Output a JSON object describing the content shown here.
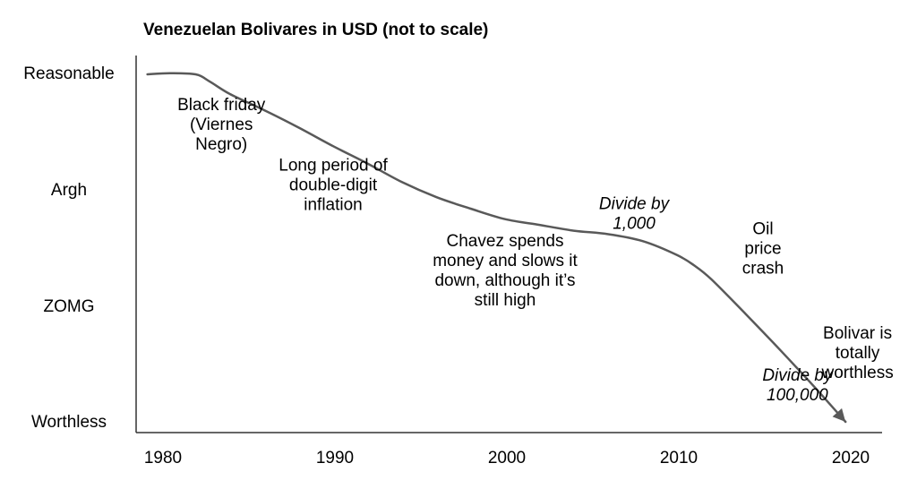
{
  "chart_data": {
    "type": "line",
    "title": "Venezuelan Bolivares in USD (not to scale)",
    "xlabel": "",
    "ylabel": "",
    "x_ticks": [
      1980,
      1990,
      2000,
      2010,
      2020
    ],
    "xlim": [
      1978,
      2022
    ],
    "y_categories": [
      "Reasonable",
      "Argh",
      "ZOMG",
      "Worthless"
    ],
    "ylim": [
      0,
      3
    ],
    "grid": false,
    "series": [
      {
        "x": [
          1979.2,
          1980.5,
          1982,
          1982.8,
          1984,
          1986,
          1988,
          1990,
          1992,
          1994,
          1996,
          1998,
          2000,
          2002,
          2004,
          2006,
          2008,
          2010,
          2011,
          2012,
          2014,
          2016,
          2018,
          2019.8
        ],
        "y": [
          3.0,
          3.01,
          3.0,
          2.94,
          2.83,
          2.69,
          2.54,
          2.38,
          2.23,
          2.07,
          1.94,
          1.84,
          1.75,
          1.7,
          1.65,
          1.62,
          1.56,
          1.44,
          1.35,
          1.23,
          0.93,
          0.62,
          0.3,
          0.0
        ]
      }
    ],
    "annotations": [
      {
        "lines": [
          "Black friday",
          "(Viernes",
          "Negro)"
        ],
        "italic": false,
        "x": 1983.5,
        "y": 2.52
      },
      {
        "lines": [
          "Long period of",
          "double-digit",
          "inflation"
        ],
        "italic": false,
        "x": 1990,
        "y": 2.0
      },
      {
        "lines": [
          "Divide by",
          "1,000"
        ],
        "italic": true,
        "x": 2007.5,
        "y": 1.75
      },
      {
        "lines": [
          "Chavez spends",
          "money and slows it",
          "down, although it’s",
          "still high"
        ],
        "italic": false,
        "x": 2000,
        "y": 1.26
      },
      {
        "lines": [
          "Oil",
          "price",
          "crash"
        ],
        "italic": false,
        "x": 2015,
        "y": 1.45
      },
      {
        "lines": [
          "Bolivar is",
          "totally",
          "worthless"
        ],
        "italic": false,
        "x": 2020.5,
        "y": 0.55
      },
      {
        "lines": [
          "Divide by",
          "100,000"
        ],
        "italic": true,
        "x": 2017,
        "y": 0.27
      }
    ],
    "colors": {
      "line": "#595959",
      "axis": "#333333",
      "text": "#111111"
    }
  }
}
